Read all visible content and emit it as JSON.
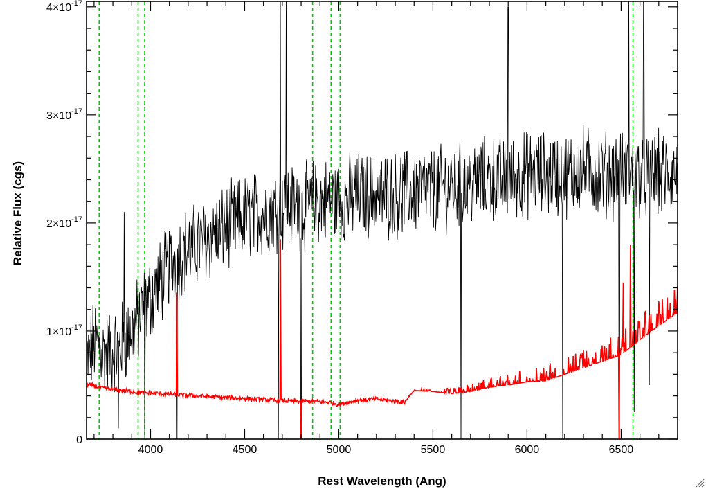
{
  "chart_data": {
    "type": "line",
    "title": "",
    "xlabel": "Rest Wavelength (Ang)",
    "ylabel": "Relative Flux (cgs)",
    "xlim": [
      3660,
      6800
    ],
    "ylim": [
      0,
      4.05e-17
    ],
    "x_ticks": [
      4000,
      4500,
      5000,
      5500,
      6000,
      6500
    ],
    "y_ticks": [
      {
        "value": 0,
        "mantissa": "0",
        "exponent": ""
      },
      {
        "value": 1e-17,
        "mantissa": "1×10",
        "exponent": "-17"
      },
      {
        "value": 2e-17,
        "mantissa": "2×10",
        "exponent": "-17"
      },
      {
        "value": 3e-17,
        "mantissa": "3×10",
        "exponent": "-17"
      },
      {
        "value": 4e-17,
        "mantissa": "4×10",
        "exponent": "-17"
      }
    ],
    "grid": false,
    "series": [
      {
        "color": "#000000",
        "style": "noisy",
        "x": [
          3660,
          3700,
          3750,
          3800,
          3850,
          3900,
          3950,
          4000,
          4050,
          4100,
          4150,
          4200,
          4300,
          4400,
          4500,
          4600,
          4700,
          4800,
          4900,
          5000,
          5100,
          5200,
          5300,
          5400,
          5500,
          5600,
          5700,
          5800,
          5900,
          6000,
          6100,
          6200,
          6300,
          6400,
          6500,
          6600,
          6700,
          6800
        ],
        "values": [
          7e-18,
          9e-18,
          8e-18,
          8e-18,
          9e-18,
          1e-17,
          1.15e-17,
          1.3e-17,
          1.45e-17,
          1.6e-17,
          1.7e-17,
          1.75e-17,
          1.85e-17,
          1.95e-17,
          2.05e-17,
          2.1e-17,
          2.15e-17,
          2.15e-17,
          2.2e-17,
          2.2e-17,
          2.25e-17,
          2.25e-17,
          2.25e-17,
          2.3e-17,
          2.3e-17,
          2.35e-17,
          2.35e-17,
          2.4e-17,
          2.4e-17,
          2.45e-17,
          2.45e-17,
          2.45e-17,
          2.5e-17,
          2.45e-17,
          2.45e-17,
          2.45e-17,
          2.45e-17,
          2.45e-17
        ],
        "noise": 3.5e-18,
        "spikes": [
          {
            "x": 3830,
            "value": 1e-18
          },
          {
            "x": 3860,
            "value": 2.1e-17
          },
          {
            "x": 3970,
            "value": 0
          },
          {
            "x": 4140,
            "value": 0
          },
          {
            "x": 4680,
            "value": 0
          },
          {
            "x": 4690,
            "value": 4.05e-17
          },
          {
            "x": 4720,
            "value": 4.05e-17
          },
          {
            "x": 4800,
            "value": 0
          },
          {
            "x": 5650,
            "value": 0
          },
          {
            "x": 5900,
            "value": 4e-17
          },
          {
            "x": 6190,
            "value": 0
          },
          {
            "x": 6490,
            "value": 0
          },
          {
            "x": 6540,
            "value": 4.05e-17
          },
          {
            "x": 6570,
            "value": 2.5e-18
          },
          {
            "x": 6620,
            "value": 4.05e-17
          },
          {
            "x": 6650,
            "value": 5e-18
          }
        ]
      },
      {
        "color": "#ff0000",
        "style": "error",
        "x": [
          3660,
          3750,
          3850,
          3950,
          4050,
          4150,
          4250,
          4350,
          4450,
          4550,
          4650,
          4750,
          4850,
          4950,
          5000,
          5100,
          5200,
          5300,
          5350,
          5400,
          5500,
          5600,
          5700,
          5800,
          5900,
          6000,
          6100,
          6200,
          6300,
          6400,
          6500,
          6600,
          6700,
          6800
        ],
        "values": [
          5.1e-18,
          4.7e-18,
          4.5e-18,
          4.3e-18,
          4.2e-18,
          4.1e-18,
          4e-18,
          3.9e-18,
          3.8e-18,
          3.7e-18,
          3.6e-18,
          3.5e-18,
          3.5e-18,
          3.4e-18,
          3.2e-18,
          3.6e-18,
          3.7e-18,
          3.5e-18,
          3.4e-18,
          4.5e-18,
          4.4e-18,
          4.2e-18,
          4.4e-18,
          4.8e-18,
          5e-18,
          5.3e-18,
          5.4e-18,
          6e-18,
          6.6e-18,
          7.2e-18,
          7.8e-18,
          9.2e-18,
          1.05e-17,
          1.17e-17
        ],
        "spikes": [
          {
            "x": 4140,
            "value": 1.35e-17
          },
          {
            "x": 4690,
            "value": 1.85e-17
          },
          {
            "x": 4800,
            "value": 0
          },
          {
            "x": 6490,
            "value": 0
          },
          {
            "x": 6510,
            "value": 1.45e-17
          },
          {
            "x": 6550,
            "value": 1.8e-17
          }
        ]
      }
    ],
    "vertical_lines": [
      3727,
      3934,
      3969,
      4861,
      4959,
      5007,
      6563
    ],
    "vertical_line_color": "#00cc00"
  }
}
